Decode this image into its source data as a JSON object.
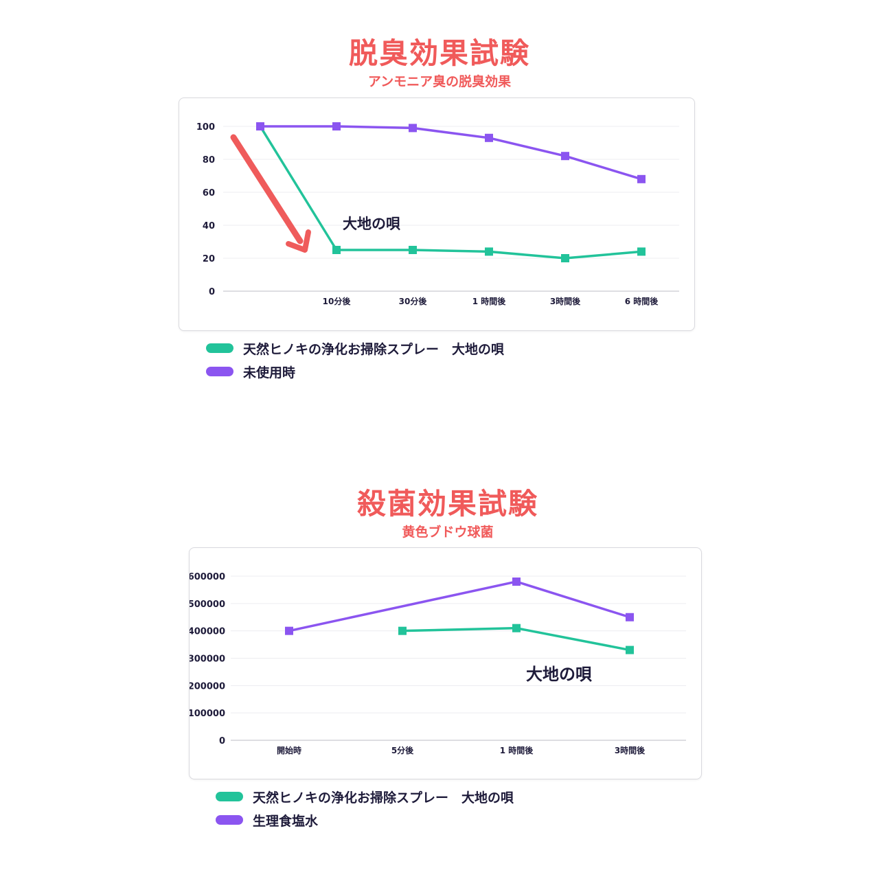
{
  "colors": {
    "green": "#22c39a",
    "purple": "#8b55f0",
    "title_red": "#f05a5a",
    "arrow_red": "#ef5b5b"
  },
  "chart_data": [
    {
      "type": "line",
      "title": "脱臭効果試験",
      "subtitle": "アンモニア臭の脱臭効果",
      "categories": [
        "",
        "10分後",
        "30分後",
        "1 時間後",
        "3時間後",
        "6 時間後"
      ],
      "yticks": [
        "100",
        "80",
        "60",
        "40",
        "20",
        "0"
      ],
      "ylim": [
        0,
        100
      ],
      "grid": true,
      "series": [
        {
          "name": "天然ヒノキの浄化お掃除スプレー　大地の唄",
          "color": "#22c39a",
          "values": [
            100,
            25,
            25,
            24,
            20,
            24
          ]
        },
        {
          "name": "未使用時",
          "color": "#8b55f0",
          "values": [
            100,
            100,
            99,
            93,
            82,
            68
          ]
        }
      ],
      "annotations": [
        "大地の唄"
      ],
      "arrow": "red-down-arrow",
      "legend_position": "bottom-left"
    },
    {
      "type": "line",
      "title": "殺菌効果試験",
      "subtitle": "黄色ブドウ球菌",
      "categories": [
        "開始時",
        "5分後",
        "1 時間後",
        "3時間後"
      ],
      "yticks": [
        "600000",
        "500000",
        "400000",
        "300000",
        "200000",
        "100000",
        "0"
      ],
      "ylim": [
        0,
        600000
      ],
      "grid": true,
      "series": [
        {
          "name": "天然ヒノキの浄化お掃除スプレー　大地の唄",
          "color": "#22c39a",
          "values": [
            null,
            400000,
            410000,
            330000
          ]
        },
        {
          "name": "生理食塩水",
          "color": "#8b55f0",
          "values": [
            400000,
            null,
            580000,
            450000
          ]
        }
      ],
      "annotations": [
        "大地の唄"
      ],
      "legend_position": "bottom-left"
    }
  ]
}
